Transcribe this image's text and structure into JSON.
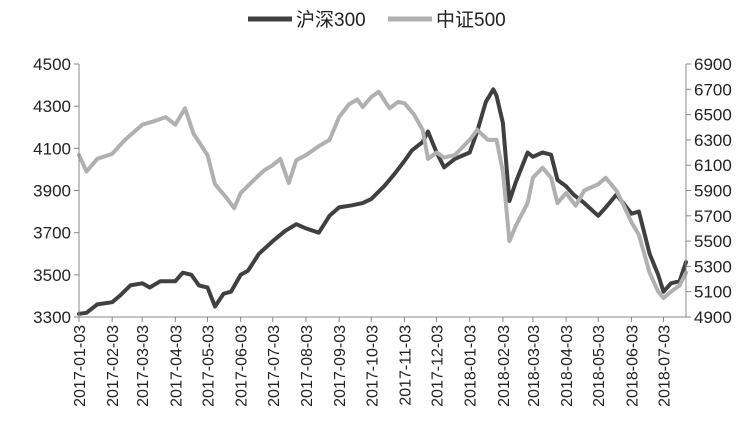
{
  "chart_data": {
    "type": "line",
    "title": "",
    "xlabel": "",
    "ylabel": "",
    "legend_position": "top-center",
    "grid": false,
    "x_ticks": [
      "2017-01-03",
      "2017-02-03",
      "2017-03-03",
      "2017-04-03",
      "2017-05-03",
      "2017-06-03",
      "2017-07-03",
      "2017-08-03",
      "2017-09-03",
      "2017-10-03",
      "2017-11-03",
      "2017-12-03",
      "2018-01-03",
      "2018-02-03",
      "2018-03-03",
      "2018-04-03",
      "2018-05-03",
      "2018-06-03",
      "2018-07-03"
    ],
    "x_range": [
      "2017-01-03",
      "2018-07-24"
    ],
    "y_left": {
      "ticks": [
        3300,
        3500,
        3700,
        3900,
        4100,
        4300,
        4500
      ],
      "range": [
        3300,
        4500
      ]
    },
    "y_right": {
      "ticks": [
        4900,
        5100,
        5300,
        5500,
        5700,
        5900,
        6100,
        6300,
        6500,
        6700,
        6900
      ],
      "range": [
        4900,
        6900
      ]
    },
    "series": [
      {
        "name": "沪深300",
        "axis": "left",
        "color": "#404040",
        "points": [
          [
            "2017-01-03",
            3315
          ],
          [
            "2017-01-10",
            3320
          ],
          [
            "2017-01-20",
            3360
          ],
          [
            "2017-02-03",
            3370
          ],
          [
            "2017-02-10",
            3400
          ],
          [
            "2017-02-20",
            3450
          ],
          [
            "2017-03-03",
            3460
          ],
          [
            "2017-03-10",
            3440
          ],
          [
            "2017-03-20",
            3470
          ],
          [
            "2017-04-03",
            3470
          ],
          [
            "2017-04-10",
            3510
          ],
          [
            "2017-04-18",
            3500
          ],
          [
            "2017-04-25",
            3450
          ],
          [
            "2017-05-03",
            3440
          ],
          [
            "2017-05-10",
            3350
          ],
          [
            "2017-05-18",
            3410
          ],
          [
            "2017-05-25",
            3420
          ],
          [
            "2017-06-03",
            3500
          ],
          [
            "2017-06-10",
            3520
          ],
          [
            "2017-06-20",
            3600
          ],
          [
            "2017-07-03",
            3660
          ],
          [
            "2017-07-15",
            3710
          ],
          [
            "2017-07-25",
            3740
          ],
          [
            "2017-08-03",
            3720
          ],
          [
            "2017-08-15",
            3700
          ],
          [
            "2017-08-25",
            3780
          ],
          [
            "2017-09-03",
            3820
          ],
          [
            "2017-09-15",
            3830
          ],
          [
            "2017-09-25",
            3840
          ],
          [
            "2017-10-03",
            3860
          ],
          [
            "2017-10-15",
            3920
          ],
          [
            "2017-10-25",
            3980
          ],
          [
            "2017-11-03",
            4040
          ],
          [
            "2017-11-10",
            4090
          ],
          [
            "2017-11-20",
            4130
          ],
          [
            "2017-11-25",
            4180
          ],
          [
            "2017-12-03",
            4080
          ],
          [
            "2017-12-10",
            4010
          ],
          [
            "2017-12-20",
            4050
          ],
          [
            "2018-01-03",
            4080
          ],
          [
            "2018-01-10",
            4180
          ],
          [
            "2018-01-18",
            4320
          ],
          [
            "2018-01-25",
            4380
          ],
          [
            "2018-01-28",
            4350
          ],
          [
            "2018-02-03",
            4220
          ],
          [
            "2018-02-09",
            3850
          ],
          [
            "2018-02-15",
            3940
          ],
          [
            "2018-02-26",
            4080
          ],
          [
            "2018-03-03",
            4060
          ],
          [
            "2018-03-12",
            4080
          ],
          [
            "2018-03-20",
            4070
          ],
          [
            "2018-03-26",
            3950
          ],
          [
            "2018-04-03",
            3920
          ],
          [
            "2018-04-10",
            3880
          ],
          [
            "2018-04-20",
            3840
          ],
          [
            "2018-05-03",
            3780
          ],
          [
            "2018-05-10",
            3820
          ],
          [
            "2018-05-20",
            3880
          ],
          [
            "2018-05-28",
            3830
          ],
          [
            "2018-06-03",
            3790
          ],
          [
            "2018-06-10",
            3800
          ],
          [
            "2018-06-20",
            3600
          ],
          [
            "2018-06-28",
            3500
          ],
          [
            "2018-07-03",
            3420
          ],
          [
            "2018-07-10",
            3460
          ],
          [
            "2018-07-18",
            3470
          ],
          [
            "2018-07-24",
            3560
          ]
        ]
      },
      {
        "name": "中证500",
        "axis": "right",
        "color": "#b0b0b0",
        "points": [
          [
            "2017-01-03",
            6180
          ],
          [
            "2017-01-10",
            6050
          ],
          [
            "2017-01-20",
            6150
          ],
          [
            "2017-02-03",
            6190
          ],
          [
            "2017-02-15",
            6300
          ],
          [
            "2017-03-03",
            6420
          ],
          [
            "2017-03-15",
            6450
          ],
          [
            "2017-03-25",
            6480
          ],
          [
            "2017-04-03",
            6420
          ],
          [
            "2017-04-12",
            6550
          ],
          [
            "2017-04-20",
            6350
          ],
          [
            "2017-05-03",
            6180
          ],
          [
            "2017-05-10",
            5950
          ],
          [
            "2017-05-20",
            5850
          ],
          [
            "2017-05-28",
            5760
          ],
          [
            "2017-06-03",
            5880
          ],
          [
            "2017-06-15",
            5980
          ],
          [
            "2017-06-25",
            6060
          ],
          [
            "2017-07-03",
            6100
          ],
          [
            "2017-07-10",
            6150
          ],
          [
            "2017-07-18",
            5960
          ],
          [
            "2017-07-25",
            6140
          ],
          [
            "2017-08-03",
            6180
          ],
          [
            "2017-08-15",
            6250
          ],
          [
            "2017-08-25",
            6300
          ],
          [
            "2017-09-03",
            6480
          ],
          [
            "2017-09-12",
            6580
          ],
          [
            "2017-09-20",
            6620
          ],
          [
            "2017-09-25",
            6560
          ],
          [
            "2017-10-03",
            6640
          ],
          [
            "2017-10-10",
            6680
          ],
          [
            "2017-10-20",
            6550
          ],
          [
            "2017-10-28",
            6600
          ],
          [
            "2017-11-03",
            6590
          ],
          [
            "2017-11-12",
            6500
          ],
          [
            "2017-11-20",
            6380
          ],
          [
            "2017-11-25",
            6150
          ],
          [
            "2017-12-03",
            6200
          ],
          [
            "2017-12-10",
            6160
          ],
          [
            "2017-12-20",
            6180
          ],
          [
            "2018-01-03",
            6300
          ],
          [
            "2018-01-10",
            6380
          ],
          [
            "2018-01-20",
            6300
          ],
          [
            "2018-01-28",
            6300
          ],
          [
            "2018-02-03",
            6050
          ],
          [
            "2018-02-09",
            5500
          ],
          [
            "2018-02-15",
            5620
          ],
          [
            "2018-02-26",
            5800
          ],
          [
            "2018-03-03",
            6000
          ],
          [
            "2018-03-12",
            6080
          ],
          [
            "2018-03-20",
            6000
          ],
          [
            "2018-03-26",
            5800
          ],
          [
            "2018-04-03",
            5880
          ],
          [
            "2018-04-12",
            5780
          ],
          [
            "2018-04-20",
            5900
          ],
          [
            "2018-05-03",
            5950
          ],
          [
            "2018-05-10",
            6000
          ],
          [
            "2018-05-20",
            5900
          ],
          [
            "2018-05-28",
            5760
          ],
          [
            "2018-06-03",
            5650
          ],
          [
            "2018-06-10",
            5550
          ],
          [
            "2018-06-20",
            5250
          ],
          [
            "2018-06-28",
            5100
          ],
          [
            "2018-07-03",
            5050
          ],
          [
            "2018-07-10",
            5100
          ],
          [
            "2018-07-18",
            5150
          ],
          [
            "2018-07-24",
            5250
          ]
        ]
      }
    ]
  }
}
